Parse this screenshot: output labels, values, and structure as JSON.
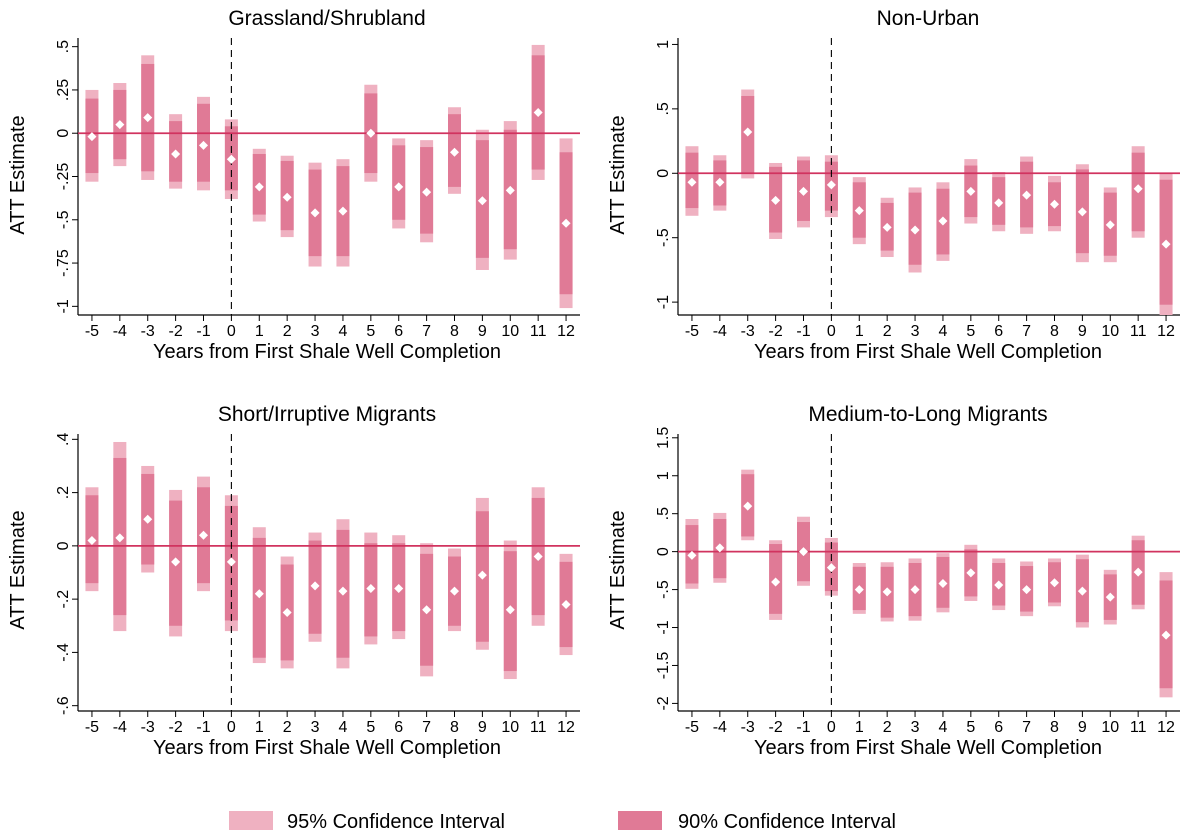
{
  "colors": {
    "ci95": "#efb1c1",
    "ci90": "#e07a96",
    "zero_line": "#d1335f",
    "point": "#ffffff",
    "axis": "#000000",
    "event_line": "#000000"
  },
  "legend": {
    "ci95_label": "95% Confidence Interval",
    "ci90_label": "90% Confidence Interval"
  },
  "chart_data": [
    {
      "type": "bar",
      "title": "Grassland/Shrubland",
      "xlabel": "Years from First Shale Well Completion",
      "ylabel": "ATT Estimate",
      "x": [
        -5,
        -4,
        -3,
        -2,
        -1,
        0,
        1,
        2,
        3,
        4,
        5,
        6,
        7,
        8,
        9,
        10,
        11,
        12
      ],
      "ylim": [
        -1.05,
        0.55
      ],
      "yticks": [
        -1,
        -0.75,
        -0.5,
        -0.25,
        0,
        0.25,
        0.5
      ],
      "ytick_labels": [
        "-1",
        "-.75",
        "-.5",
        "-.25",
        "0",
        ".25",
        ".5"
      ],
      "event_line_x": 0,
      "estimates": [
        -0.02,
        0.05,
        0.09,
        -0.12,
        -0.07,
        -0.15,
        -0.31,
        -0.37,
        -0.46,
        -0.45,
        0.0,
        -0.31,
        -0.34,
        -0.11,
        -0.39,
        -0.33,
        0.12,
        -0.52
      ],
      "ci90_low": [
        -0.23,
        -0.15,
        -0.22,
        -0.28,
        -0.28,
        -0.33,
        -0.47,
        -0.56,
        -0.71,
        -0.71,
        -0.23,
        -0.5,
        -0.58,
        -0.31,
        -0.72,
        -0.67,
        -0.21,
        -0.93
      ],
      "ci90_high": [
        0.2,
        0.25,
        0.4,
        0.07,
        0.17,
        0.04,
        -0.12,
        -0.16,
        -0.21,
        -0.19,
        0.23,
        -0.07,
        -0.08,
        0.11,
        -0.04,
        0.02,
        0.45,
        -0.11
      ],
      "ci95_low": [
        -0.28,
        -0.19,
        -0.27,
        -0.32,
        -0.33,
        -0.38,
        -0.51,
        -0.6,
        -0.77,
        -0.77,
        -0.28,
        -0.55,
        -0.63,
        -0.35,
        -0.79,
        -0.73,
        -0.27,
        -1.01
      ],
      "ci95_high": [
        0.25,
        0.29,
        0.45,
        0.11,
        0.21,
        0.08,
        -0.09,
        -0.13,
        -0.17,
        -0.15,
        0.28,
        -0.03,
        -0.04,
        0.15,
        0.02,
        0.07,
        0.51,
        -0.03
      ]
    },
    {
      "type": "bar",
      "title": "Non-Urban",
      "xlabel": "Years from First Shale Well Completion",
      "ylabel": "ATT Estimate",
      "x": [
        -5,
        -4,
        -3,
        -2,
        -1,
        0,
        1,
        2,
        3,
        4,
        5,
        6,
        7,
        8,
        9,
        10,
        11,
        12
      ],
      "ylim": [
        -1.1,
        1.05
      ],
      "yticks": [
        -1,
        -0.5,
        0,
        0.5,
        1
      ],
      "ytick_labels": [
        "-1",
        "-.5",
        "0",
        ".5",
        "1"
      ],
      "event_line_x": 0,
      "estimates": [
        -0.07,
        -0.07,
        0.32,
        -0.21,
        -0.14,
        -0.09,
        -0.29,
        -0.42,
        -0.44,
        -0.37,
        -0.14,
        -0.23,
        -0.17,
        -0.24,
        -0.3,
        -0.4,
        -0.12,
        -0.55
      ],
      "ci90_low": [
        -0.27,
        -0.25,
        0.0,
        -0.46,
        -0.37,
        -0.29,
        -0.5,
        -0.6,
        -0.71,
        -0.63,
        -0.34,
        -0.4,
        -0.42,
        -0.41,
        -0.62,
        -0.64,
        -0.45,
        -1.02
      ],
      "ci90_high": [
        0.16,
        0.1,
        0.6,
        0.05,
        0.1,
        0.09,
        -0.07,
        -0.23,
        -0.15,
        -0.12,
        0.06,
        -0.03,
        0.09,
        -0.07,
        0.03,
        -0.15,
        0.16,
        -0.05
      ],
      "ci95_low": [
        -0.33,
        -0.29,
        -0.04,
        -0.51,
        -0.42,
        -0.34,
        -0.55,
        -0.65,
        -0.77,
        -0.68,
        -0.39,
        -0.45,
        -0.47,
        -0.45,
        -0.69,
        -0.69,
        -0.5,
        -1.1
      ],
      "ci95_high": [
        0.21,
        0.14,
        0.65,
        0.08,
        0.13,
        0.14,
        -0.03,
        -0.19,
        -0.11,
        -0.07,
        0.11,
        0.01,
        0.13,
        -0.02,
        0.07,
        -0.11,
        0.21,
        0.0
      ]
    },
    {
      "type": "bar",
      "title": "Short/Irruptive Migrants",
      "xlabel": "Years from First Shale Well Completion",
      "ylabel": "ATT Estimate",
      "x": [
        -5,
        -4,
        -3,
        -2,
        -1,
        0,
        1,
        2,
        3,
        4,
        5,
        6,
        7,
        8,
        9,
        10,
        11,
        12
      ],
      "ylim": [
        -0.62,
        0.42
      ],
      "yticks": [
        -0.6,
        -0.4,
        -0.2,
        0,
        0.2,
        0.4
      ],
      "ytick_labels": [
        "-.6",
        "-.4",
        "-.2",
        "0",
        ".2",
        ".4"
      ],
      "event_line_x": 0,
      "estimates": [
        0.02,
        0.03,
        0.1,
        -0.06,
        0.04,
        -0.06,
        -0.18,
        -0.25,
        -0.15,
        -0.17,
        -0.16,
        -0.16,
        -0.24,
        -0.17,
        -0.11,
        -0.24,
        -0.04,
        -0.22
      ],
      "ci90_low": [
        -0.14,
        -0.26,
        -0.07,
        -0.3,
        -0.14,
        -0.28,
        -0.42,
        -0.43,
        -0.33,
        -0.42,
        -0.34,
        -0.32,
        -0.45,
        -0.3,
        -0.36,
        -0.47,
        -0.26,
        -0.38
      ],
      "ci90_high": [
        0.19,
        0.33,
        0.27,
        0.17,
        0.22,
        0.15,
        0.03,
        -0.07,
        0.02,
        0.06,
        0.01,
        0.01,
        -0.03,
        -0.04,
        0.13,
        -0.02,
        0.18,
        -0.06
      ],
      "ci95_low": [
        -0.17,
        -0.32,
        -0.1,
        -0.34,
        -0.17,
        -0.32,
        -0.44,
        -0.46,
        -0.36,
        -0.46,
        -0.37,
        -0.35,
        -0.49,
        -0.32,
        -0.39,
        -0.5,
        -0.3,
        -0.41
      ],
      "ci95_high": [
        0.22,
        0.39,
        0.3,
        0.21,
        0.26,
        0.19,
        0.07,
        -0.04,
        0.05,
        0.1,
        0.05,
        0.04,
        0.01,
        -0.01,
        0.18,
        0.02,
        0.22,
        -0.03
      ]
    },
    {
      "type": "bar",
      "title": "Medium-to-Long Migrants",
      "xlabel": "Years from First Shale Well Completion",
      "ylabel": "ATT Estimate",
      "x": [
        -5,
        -4,
        -3,
        -2,
        -1,
        0,
        1,
        2,
        3,
        4,
        5,
        6,
        7,
        8,
        9,
        10,
        11,
        12
      ],
      "ylim": [
        -2.1,
        1.55
      ],
      "yticks": [
        -2,
        -1.5,
        -1,
        -0.5,
        0,
        0.5,
        1,
        1.5
      ],
      "ytick_labels": [
        "-2",
        "-1.5",
        "-1",
        "-.5",
        "0",
        ".5",
        "1",
        "1.5"
      ],
      "event_line_x": 0,
      "estimates": [
        -0.05,
        0.05,
        0.6,
        -0.4,
        0.0,
        -0.21,
        -0.5,
        -0.53,
        -0.5,
        -0.42,
        -0.28,
        -0.44,
        -0.5,
        -0.41,
        -0.52,
        -0.6,
        -0.27,
        -1.1
      ],
      "ci90_low": [
        -0.42,
        -0.35,
        0.2,
        -0.82,
        -0.39,
        -0.52,
        -0.77,
        -0.87,
        -0.85,
        -0.74,
        -0.59,
        -0.71,
        -0.79,
        -0.67,
        -0.93,
        -0.9,
        -0.7,
        -1.8
      ],
      "ci90_high": [
        0.35,
        0.43,
        1.02,
        0.1,
        0.39,
        0.12,
        -0.2,
        -0.2,
        -0.15,
        -0.07,
        0.03,
        -0.15,
        -0.19,
        -0.14,
        -0.1,
        -0.3,
        0.15,
        -0.38
      ],
      "ci95_low": [
        -0.49,
        -0.41,
        0.15,
        -0.9,
        -0.45,
        -0.58,
        -0.82,
        -0.92,
        -0.91,
        -0.8,
        -0.65,
        -0.77,
        -0.85,
        -0.72,
        -1.0,
        -0.96,
        -0.76,
        -1.92
      ],
      "ci95_high": [
        0.43,
        0.51,
        1.08,
        0.15,
        0.46,
        0.18,
        -0.15,
        -0.14,
        -0.09,
        -0.02,
        0.09,
        -0.09,
        -0.13,
        -0.09,
        -0.04,
        -0.24,
        0.21,
        -0.27
      ]
    }
  ]
}
